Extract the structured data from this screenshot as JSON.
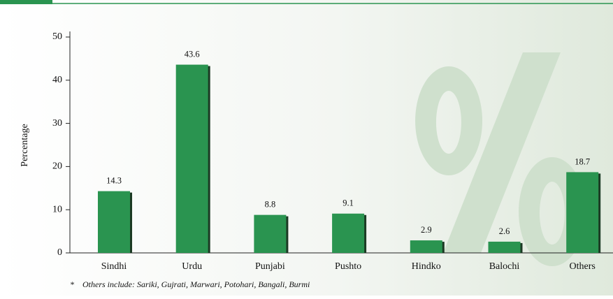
{
  "chart_data": {
    "type": "bar",
    "y_label": "Percentage",
    "categories": [
      "Sindhi",
      "Urdu",
      "Punjabi",
      "Pushto",
      "Hindko",
      "Balochi",
      "Others"
    ],
    "values": [
      14.3,
      43.6,
      8.8,
      9.1,
      2.9,
      2.6,
      18.7
    ],
    "color": "#2a9450",
    "ylim": [
      0,
      50
    ],
    "yticks": [
      0,
      10,
      20,
      30,
      40,
      50
    ],
    "footnote": "*    Others include: Sariki, Gujrati, Marwari, Potohari, Bangali, Burmi"
  }
}
